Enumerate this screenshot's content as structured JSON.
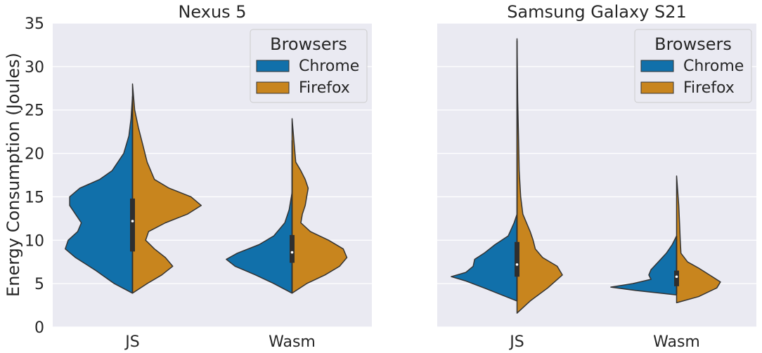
{
  "colors": {
    "chrome": "#1170aa",
    "firefox": "#c8851e",
    "panel_bg": "#eaeaf2",
    "grid": "#ffffff",
    "outline": "#333333",
    "box": "#2f2f2f"
  },
  "chart_data": {
    "type": "violin",
    "ylabel": "Energy Consumption (Joules)",
    "ylim": [
      0,
      35
    ],
    "yticks": [
      0,
      5,
      10,
      15,
      20,
      25,
      30,
      35
    ],
    "categories": [
      "JS",
      "Wasm"
    ],
    "legend": {
      "title": "Browsers",
      "entries": [
        "Chrome",
        "Firefox"
      ],
      "placement": "top-right"
    },
    "panels": [
      {
        "title": "Nexus 5",
        "groups": [
          {
            "category": "JS",
            "median": 12.2,
            "q1": 8.7,
            "q3": 14.8,
            "whisker_low": 4.0,
            "whisker_high": 26.5,
            "chrome": {
              "min": 3.9,
              "max": 26.6,
              "profile": [
                [
                  3.9,
                  0.0
                ],
                [
                  5.0,
                  0.25
                ],
                [
                  6.5,
                  0.5
                ],
                [
                  8.0,
                  0.78
                ],
                [
                  9.0,
                  0.92
                ],
                [
                  10.0,
                  0.88
                ],
                [
                  11.0,
                  0.75
                ],
                [
                  12.0,
                  0.7
                ],
                [
                  13.0,
                  0.78
                ],
                [
                  14.0,
                  0.86
                ],
                [
                  15.0,
                  0.86
                ],
                [
                  16.0,
                  0.72
                ],
                [
                  17.0,
                  0.45
                ],
                [
                  18.0,
                  0.28
                ],
                [
                  20.0,
                  0.12
                ],
                [
                  22.0,
                  0.05
                ],
                [
                  24.0,
                  0.02
                ],
                [
                  26.6,
                  0.0
                ]
              ]
            },
            "firefox": {
              "min": 3.9,
              "max": 28.0,
              "profile": [
                [
                  3.9,
                  0.0
                ],
                [
                  5.0,
                  0.2
                ],
                [
                  6.0,
                  0.4
                ],
                [
                  7.0,
                  0.55
                ],
                [
                  8.0,
                  0.45
                ],
                [
                  9.0,
                  0.3
                ],
                [
                  10.0,
                  0.18
                ],
                [
                  11.0,
                  0.22
                ],
                [
                  12.0,
                  0.45
                ],
                [
                  13.0,
                  0.75
                ],
                [
                  14.0,
                  0.94
                ],
                [
                  15.0,
                  0.8
                ],
                [
                  16.0,
                  0.5
                ],
                [
                  17.0,
                  0.3
                ],
                [
                  19.0,
                  0.2
                ],
                [
                  21.0,
                  0.14
                ],
                [
                  23.0,
                  0.08
                ],
                [
                  25.0,
                  0.03
                ],
                [
                  28.0,
                  0.0
                ]
              ]
            }
          },
          {
            "category": "Wasm",
            "median": 8.6,
            "q1": 7.4,
            "q3": 10.6,
            "whisker_low": 4.0,
            "whisker_high": 21.5,
            "chrome": {
              "min": 3.9,
              "max": 15.5,
              "profile": [
                [
                  3.9,
                  0.0
                ],
                [
                  5.0,
                  0.25
                ],
                [
                  6.0,
                  0.5
                ],
                [
                  7.0,
                  0.78
                ],
                [
                  7.8,
                  0.9
                ],
                [
                  8.5,
                  0.75
                ],
                [
                  9.5,
                  0.45
                ],
                [
                  10.5,
                  0.25
                ],
                [
                  12.0,
                  0.1
                ],
                [
                  13.5,
                  0.04
                ],
                [
                  15.5,
                  0.0
                ]
              ]
            },
            "firefox": {
              "min": 3.9,
              "max": 24.0,
              "profile": [
                [
                  3.9,
                  0.0
                ],
                [
                  5.0,
                  0.2
                ],
                [
                  6.0,
                  0.45
                ],
                [
                  7.0,
                  0.65
                ],
                [
                  8.0,
                  0.75
                ],
                [
                  9.0,
                  0.7
                ],
                [
                  10.0,
                  0.5
                ],
                [
                  11.0,
                  0.25
                ],
                [
                  12.0,
                  0.12
                ],
                [
                  13.0,
                  0.14
                ],
                [
                  14.0,
                  0.18
                ],
                [
                  15.0,
                  0.2
                ],
                [
                  16.0,
                  0.22
                ],
                [
                  17.0,
                  0.18
                ],
                [
                  18.0,
                  0.12
                ],
                [
                  19.0,
                  0.05
                ],
                [
                  21.0,
                  0.03
                ],
                [
                  24.0,
                  0.0
                ]
              ]
            }
          }
        ]
      },
      {
        "title": "Samsung Galaxy S21",
        "groups": [
          {
            "category": "JS",
            "median": 7.2,
            "q1": 5.8,
            "q3": 9.8,
            "whisker_low": 3.0,
            "whisker_high": 33.0,
            "chrome": {
              "min": 3.0,
              "max": 13.0,
              "profile": [
                [
                  3.0,
                  0.0
                ],
                [
                  4.5,
                  0.45
                ],
                [
                  5.3,
                  0.7
                ],
                [
                  5.8,
                  0.9
                ],
                [
                  6.3,
                  0.7
                ],
                [
                  7.0,
                  0.6
                ],
                [
                  7.8,
                  0.58
                ],
                [
                  8.5,
                  0.45
                ],
                [
                  9.5,
                  0.3
                ],
                [
                  10.5,
                  0.12
                ],
                [
                  12.0,
                  0.04
                ],
                [
                  13.0,
                  0.0
                ]
              ]
            },
            "firefox": {
              "min": 1.6,
              "max": 33.2,
              "profile": [
                [
                  1.6,
                  0.0
                ],
                [
                  3.0,
                  0.18
                ],
                [
                  4.5,
                  0.42
                ],
                [
                  6.0,
                  0.62
                ],
                [
                  7.0,
                  0.55
                ],
                [
                  8.0,
                  0.35
                ],
                [
                  9.0,
                  0.25
                ],
                [
                  10.0,
                  0.22
                ],
                [
                  11.0,
                  0.18
                ],
                [
                  13.0,
                  0.08
                ],
                [
                  15.0,
                  0.05
                ],
                [
                  18.0,
                  0.03
                ],
                [
                  22.0,
                  0.02
                ],
                [
                  26.0,
                  0.01
                ],
                [
                  33.2,
                  0.0
                ]
              ]
            }
          },
          {
            "category": "Wasm",
            "median": 5.8,
            "q1": 4.7,
            "q3": 6.5,
            "whisker_low": 3.8,
            "whisker_high": 10.5,
            "chrome": {
              "min": 3.7,
              "max": 10.5,
              "profile": [
                [
                  3.7,
                  0.0
                ],
                [
                  4.2,
                  0.55
                ],
                [
                  4.6,
                  0.9
                ],
                [
                  5.0,
                  0.6
                ],
                [
                  5.5,
                  0.35
                ],
                [
                  6.0,
                  0.38
                ],
                [
                  6.6,
                  0.35
                ],
                [
                  7.5,
                  0.25
                ],
                [
                  8.5,
                  0.14
                ],
                [
                  9.5,
                  0.06
                ],
                [
                  10.5,
                  0.0
                ]
              ]
            },
            "firefox": {
              "min": 2.8,
              "max": 17.4,
              "profile": [
                [
                  2.8,
                  0.0
                ],
                [
                  3.5,
                  0.3
                ],
                [
                  4.5,
                  0.55
                ],
                [
                  5.2,
                  0.6
                ],
                [
                  6.0,
                  0.45
                ],
                [
                  6.8,
                  0.3
                ],
                [
                  7.5,
                  0.15
                ],
                [
                  8.5,
                  0.06
                ],
                [
                  10.0,
                  0.05
                ],
                [
                  12.0,
                  0.04
                ],
                [
                  14.0,
                  0.03
                ],
                [
                  17.4,
                  0.0
                ]
              ]
            }
          }
        ]
      }
    ]
  }
}
